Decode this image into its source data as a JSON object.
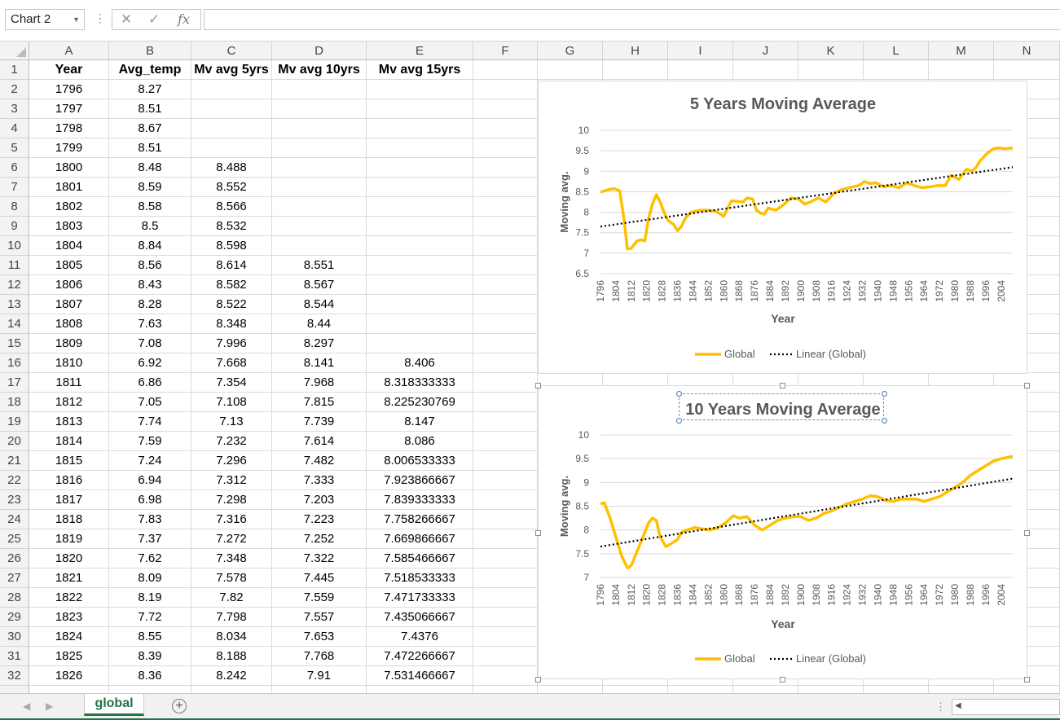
{
  "name_box": {
    "value": "Chart 2"
  },
  "formula_bar": {
    "cancel_glyph": "✕",
    "enter_glyph": "✓",
    "fx_label": "fx",
    "value": ""
  },
  "columns": [
    "A",
    "B",
    "C",
    "D",
    "E",
    "F",
    "G",
    "H",
    "I",
    "J",
    "K",
    "L",
    "M",
    "N"
  ],
  "header_row": [
    "Year",
    "Avg_temp",
    "Mv avg 5yrs",
    "Mv avg 10yrs",
    "Mv avg 15yrs"
  ],
  "rows": [
    [
      "1796",
      "8.27",
      "",
      "",
      ""
    ],
    [
      "1797",
      "8.51",
      "",
      "",
      ""
    ],
    [
      "1798",
      "8.67",
      "",
      "",
      ""
    ],
    [
      "1799",
      "8.51",
      "",
      "",
      ""
    ],
    [
      "1800",
      "8.48",
      "8.488",
      "",
      ""
    ],
    [
      "1801",
      "8.59",
      "8.552",
      "",
      ""
    ],
    [
      "1802",
      "8.58",
      "8.566",
      "",
      ""
    ],
    [
      "1803",
      "8.5",
      "8.532",
      "",
      ""
    ],
    [
      "1804",
      "8.84",
      "8.598",
      "",
      ""
    ],
    [
      "1805",
      "8.56",
      "8.614",
      "8.551",
      ""
    ],
    [
      "1806",
      "8.43",
      "8.582",
      "8.567",
      ""
    ],
    [
      "1807",
      "8.28",
      "8.522",
      "8.544",
      ""
    ],
    [
      "1808",
      "7.63",
      "8.348",
      "8.44",
      ""
    ],
    [
      "1809",
      "7.08",
      "7.996",
      "8.297",
      ""
    ],
    [
      "1810",
      "6.92",
      "7.668",
      "8.141",
      "8.406"
    ],
    [
      "1811",
      "6.86",
      "7.354",
      "7.968",
      "8.318333333"
    ],
    [
      "1812",
      "7.05",
      "7.108",
      "7.815",
      "8.225230769"
    ],
    [
      "1813",
      "7.74",
      "7.13",
      "7.739",
      "8.147"
    ],
    [
      "1814",
      "7.59",
      "7.232",
      "7.614",
      "8.086"
    ],
    [
      "1815",
      "7.24",
      "7.296",
      "7.482",
      "8.006533333"
    ],
    [
      "1816",
      "6.94",
      "7.312",
      "7.333",
      "7.923866667"
    ],
    [
      "1817",
      "6.98",
      "7.298",
      "7.203",
      "7.839333333"
    ],
    [
      "1818",
      "7.83",
      "7.316",
      "7.223",
      "7.758266667"
    ],
    [
      "1819",
      "7.37",
      "7.272",
      "7.252",
      "7.669866667"
    ],
    [
      "1820",
      "7.62",
      "7.348",
      "7.322",
      "7.585466667"
    ],
    [
      "1821",
      "8.09",
      "7.578",
      "7.445",
      "7.518533333"
    ],
    [
      "1822",
      "8.19",
      "7.82",
      "7.559",
      "7.471733333"
    ],
    [
      "1823",
      "7.72",
      "7.798",
      "7.557",
      "7.435066667"
    ],
    [
      "1824",
      "8.55",
      "8.034",
      "7.653",
      "7.4376"
    ],
    [
      "1825",
      "8.39",
      "8.188",
      "7.768",
      "7.472266667"
    ],
    [
      "1826",
      "8.36",
      "8.242",
      "7.91",
      "7.531466667"
    ]
  ],
  "sheet_tab": {
    "label": "global"
  },
  "add_sheet_glyph": "+",
  "line_color": "#FFC000",
  "trend_color": "#000000",
  "chart_data": [
    {
      "type": "line",
      "title": "5 Years Moving Average",
      "xlabel": "Year",
      "ylabel": "Moving avg.",
      "ylim": [
        6.5,
        10
      ],
      "yticks": [
        "10",
        "9.5",
        "9",
        "8.5",
        "8",
        "7.5",
        "7",
        "6.5"
      ],
      "xticks": [
        "1796",
        "1804",
        "1812",
        "1820",
        "1828",
        "1836",
        "1844",
        "1852",
        "1860",
        "1868",
        "1876",
        "1884",
        "1892",
        "1900",
        "1908",
        "1916",
        "1924",
        "1932",
        "1940",
        "1948",
        "1956",
        "1964",
        "1972",
        "1980",
        "1988",
        "1996",
        "2004"
      ],
      "grid": true,
      "legend": "bottom",
      "series": [
        {
          "name": "Global",
          "x": [
            1796,
            1800,
            1803,
            1806,
            1808,
            1810,
            1812,
            1815,
            1817,
            1819,
            1821,
            1823,
            1825,
            1827,
            1829,
            1831,
            1834,
            1836,
            1838,
            1840,
            1843,
            1848,
            1852,
            1856,
            1860,
            1862,
            1864,
            1866,
            1870,
            1872,
            1875,
            1877,
            1879,
            1881,
            1883,
            1887,
            1891,
            1895,
            1899,
            1902,
            1905,
            1909,
            1913,
            1917,
            1921,
            1925,
            1930,
            1933,
            1936,
            1939,
            1943,
            1947,
            1951,
            1955,
            1959,
            1963,
            1967,
            1971,
            1975,
            1978,
            1982,
            1986,
            1989,
            1991,
            1993,
            1995,
            1997,
            2000,
            2003,
            2006,
            2010
          ],
          "values": [
            8.49,
            8.55,
            8.58,
            8.52,
            7.9,
            7.1,
            7.12,
            7.3,
            7.33,
            7.3,
            7.85,
            8.2,
            8.43,
            8.25,
            8.0,
            7.8,
            7.7,
            7.55,
            7.65,
            7.85,
            8.0,
            8.05,
            8.05,
            8.02,
            7.9,
            8.1,
            8.28,
            8.27,
            8.25,
            8.35,
            8.32,
            8.05,
            7.98,
            7.95,
            8.1,
            8.05,
            8.18,
            8.35,
            8.32,
            8.2,
            8.25,
            8.35,
            8.25,
            8.45,
            8.55,
            8.6,
            8.65,
            8.75,
            8.7,
            8.72,
            8.62,
            8.65,
            8.6,
            8.72,
            8.65,
            8.6,
            8.62,
            8.65,
            8.65,
            8.9,
            8.8,
            9.05,
            9.0,
            9.1,
            9.25,
            9.35,
            9.45,
            9.55,
            9.57,
            9.55,
            9.57
          ]
        },
        {
          "name": "Linear (Global)",
          "x": [
            1796,
            2010
          ],
          "values": [
            7.65,
            9.1
          ]
        }
      ]
    },
    {
      "type": "line",
      "title": "10 Years Moving Average",
      "xlabel": "Year",
      "ylabel": "Moving avg.",
      "ylim": [
        7,
        10
      ],
      "yticks": [
        "10",
        "9.5",
        "9",
        "8.5",
        "8",
        "7.5",
        "7"
      ],
      "xticks": [
        "1796",
        "1804",
        "1812",
        "1820",
        "1828",
        "1836",
        "1844",
        "1852",
        "1860",
        "1868",
        "1876",
        "1884",
        "1892",
        "1900",
        "1908",
        "1916",
        "1924",
        "1932",
        "1940",
        "1948",
        "1956",
        "1964",
        "1972",
        "1980",
        "1988",
        "1996",
        "2004"
      ],
      "grid": true,
      "legend": "bottom",
      "series": [
        {
          "name": "Global",
          "x": [
            1796,
            1798,
            1801,
            1804,
            1807,
            1810,
            1812,
            1815,
            1817,
            1819,
            1821,
            1823,
            1825,
            1827,
            1830,
            1833,
            1836,
            1838,
            1841,
            1845,
            1849,
            1853,
            1857,
            1861,
            1865,
            1868,
            1872,
            1876,
            1880,
            1884,
            1888,
            1892,
            1896,
            1900,
            1904,
            1908,
            1912,
            1916,
            1920,
            1924,
            1928,
            1932,
            1936,
            1940,
            1944,
            1948,
            1952,
            1956,
            1960,
            1964,
            1968,
            1972,
            1976,
            1980,
            1984,
            1988,
            1992,
            1996,
            2000,
            2004,
            2010
          ],
          "values": [
            8.55,
            8.57,
            8.25,
            7.85,
            7.45,
            7.2,
            7.25,
            7.55,
            7.75,
            7.95,
            8.15,
            8.25,
            8.2,
            7.85,
            7.65,
            7.72,
            7.8,
            7.95,
            8.0,
            8.05,
            8.02,
            8.0,
            8.05,
            8.15,
            8.3,
            8.25,
            8.28,
            8.1,
            8.0,
            8.1,
            8.2,
            8.25,
            8.28,
            8.28,
            8.2,
            8.25,
            8.35,
            8.4,
            8.48,
            8.55,
            8.6,
            8.65,
            8.72,
            8.7,
            8.62,
            8.6,
            8.65,
            8.65,
            8.65,
            8.6,
            8.65,
            8.7,
            8.8,
            8.9,
            9.0,
            9.15,
            9.25,
            9.35,
            9.45,
            9.5,
            9.55
          ]
        },
        {
          "name": "Linear (Global)",
          "x": [
            1796,
            2010
          ],
          "values": [
            7.65,
            9.08
          ]
        }
      ]
    }
  ]
}
